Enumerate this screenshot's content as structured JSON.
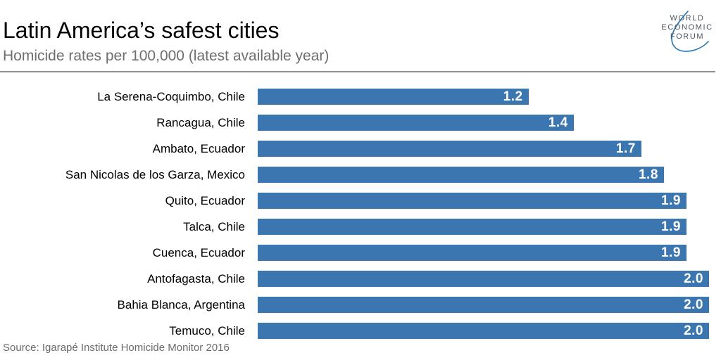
{
  "header": {
    "title": "Latin America’s safest cities",
    "subtitle": "Homicide rates per 100,000 (latest available year)"
  },
  "logo": {
    "lines": [
      "WORLD",
      "ECONOMIC",
      "FORUM"
    ],
    "text_color": "#4d565e",
    "arc_color": "#2e7cb8"
  },
  "source": "Source: Igarapé Institute Homicide Monitor 2016",
  "colors": {
    "bar": "#3b76b1",
    "value_label": "#ffffff",
    "title": "#000000",
    "subtitle": "#6e6e6e",
    "divider": "#8f8f8f",
    "source": "#6b6b6b"
  },
  "chart_data": {
    "type": "bar",
    "orientation": "horizontal",
    "title": "Latin America’s safest cities",
    "subtitle": "Homicide rates per 100,000 (latest available year)",
    "xlabel": "",
    "ylabel": "",
    "xlim": [
      0,
      2.0
    ],
    "grid": false,
    "legend": false,
    "bar_color": "#3b76b1",
    "categories": [
      "La Serena-Coquimbo, Chile",
      "Rancagua, Chile",
      "Ambato, Ecuador",
      "San Nicolas de los Garza, Mexico",
      "Quito, Ecuador",
      "Talca, Chile",
      "Cuenca, Ecuador",
      "Antofagasta, Chile",
      "Bahia Blanca, Argentina",
      "Temuco, Chile"
    ],
    "values": [
      1.2,
      1.4,
      1.7,
      1.8,
      1.9,
      1.9,
      1.9,
      2.0,
      2.0,
      2.0
    ],
    "value_labels": [
      "1.2",
      "1.4",
      "1.7",
      "1.8",
      "1.9",
      "1.9",
      "1.9",
      "2.0",
      "2.0",
      "2.0"
    ]
  }
}
